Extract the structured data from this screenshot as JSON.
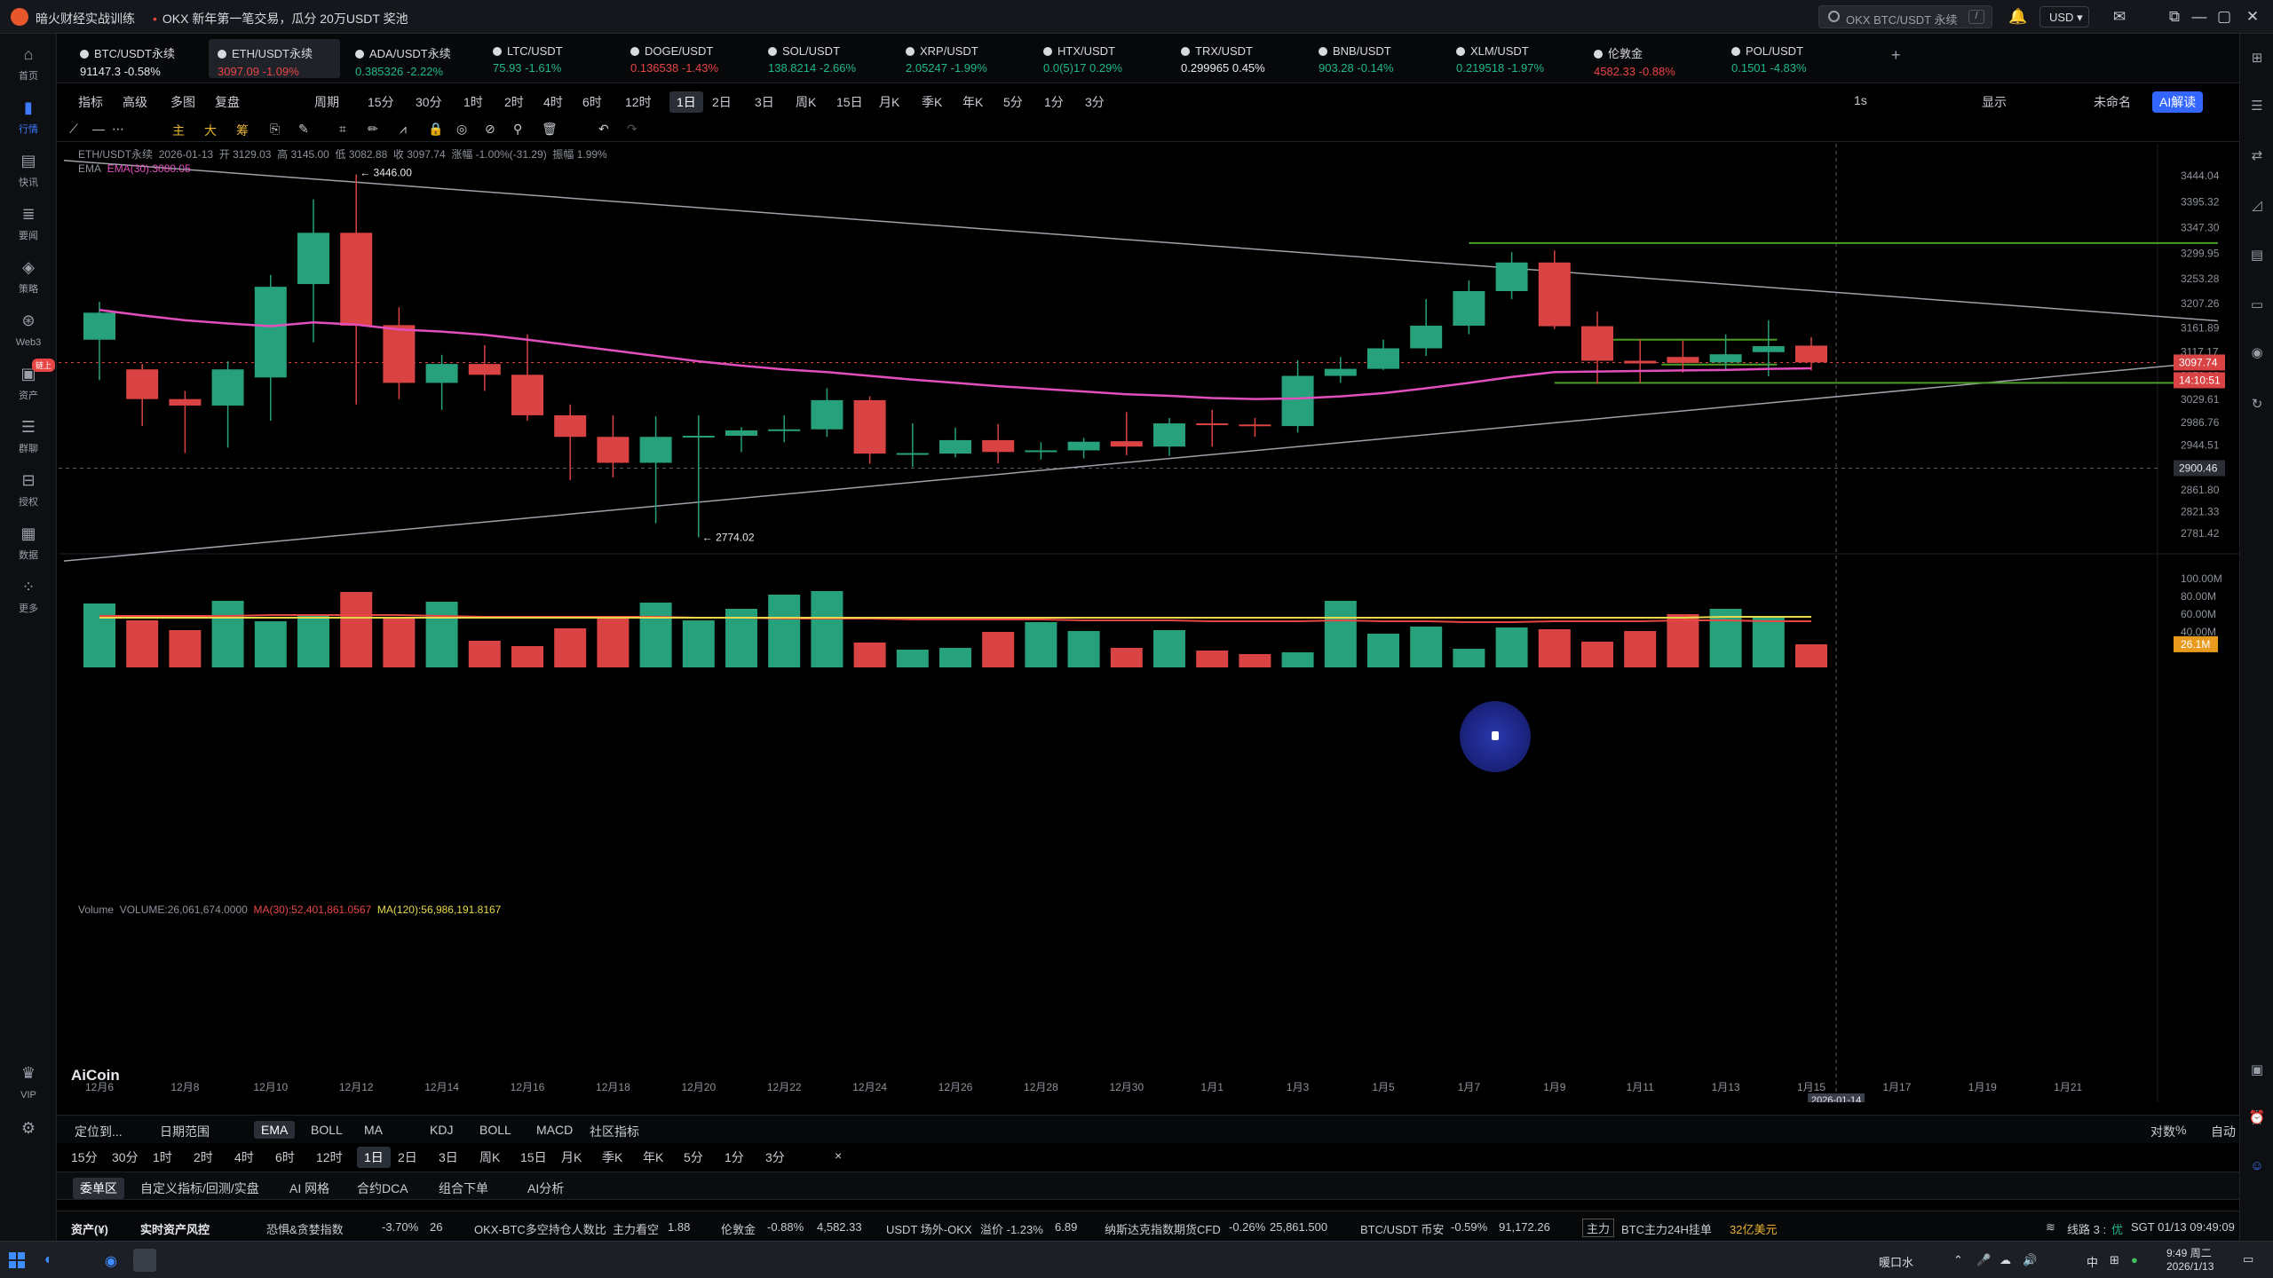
{
  "app": {
    "title": "暗火财经实战训练",
    "notice": "OKX 新年第一笔交易，瓜分 20万USDT 奖池",
    "search_placeholder": "OKX BTC/USDT 永续",
    "search_shortcut": "/",
    "currency": "USD"
  },
  "left_nav": [
    {
      "label": "首页",
      "icon": "home-icon"
    },
    {
      "label": "行情",
      "icon": "chart-bars-icon",
      "active": true
    },
    {
      "label": "快讯",
      "icon": "news-icon"
    },
    {
      "label": "要闻",
      "icon": "document-icon"
    },
    {
      "label": "策略",
      "icon": "robot-icon"
    },
    {
      "label": "Web3",
      "icon": "web3-icon"
    },
    {
      "label": "资产",
      "icon": "wallet-icon",
      "badge": "链上"
    },
    {
      "label": "群聊",
      "icon": "chat-icon"
    },
    {
      "label": "授权",
      "icon": "authorize-icon"
    },
    {
      "label": "数据",
      "icon": "data-icon"
    },
    {
      "label": "更多",
      "icon": "more-grid-icon"
    },
    {
      "label": "VIP",
      "icon": "vip-icon"
    },
    {
      "label": "",
      "icon": "settings-icon"
    }
  ],
  "tickers": [
    {
      "name": "BTC/USDT永续",
      "price": "91147.3",
      "change": "-0.58%",
      "price_color": "white",
      "change_color": "white"
    },
    {
      "name": "ETH/USDT永续",
      "price": "3097.09",
      "change": "-1.09%",
      "price_color": "down",
      "change_color": "down",
      "active": true
    },
    {
      "name": "ADA/USDT永续",
      "price": "0.385326",
      "change": "-2.22%",
      "price_color": "up",
      "change_color": "up"
    },
    {
      "name": "LTC/USDT",
      "price": "75.93",
      "change": "-1.61%",
      "price_color": "up",
      "change_color": "up"
    },
    {
      "name": "DOGE/USDT",
      "price": "0.136538",
      "change": "-1.43%",
      "price_color": "down",
      "change_color": "down"
    },
    {
      "name": "SOL/USDT",
      "price": "138.8214",
      "change": "-2.66%",
      "price_color": "up",
      "change_color": "up"
    },
    {
      "name": "XRP/USDT",
      "price": "2.05247",
      "change": "-1.99%",
      "price_color": "up",
      "change_color": "up"
    },
    {
      "name": "HTX/USDT",
      "price": "0.0(5)17",
      "change": "0.29%",
      "price_color": "up",
      "change_color": "up"
    },
    {
      "name": "TRX/USDT",
      "price": "0.299965",
      "change": "0.45%",
      "price_color": "white",
      "change_color": "white"
    },
    {
      "name": "BNB/USDT",
      "price": "903.28",
      "change": "-0.14%",
      "price_color": "up",
      "change_color": "up"
    },
    {
      "name": "XLM/USDT",
      "price": "0.219518",
      "change": "-1.97%",
      "price_color": "up",
      "change_color": "up"
    },
    {
      "name": "伦敦金",
      "price": "4582.33",
      "change": "-0.88%",
      "price_color": "down",
      "change_color": "down"
    },
    {
      "name": "POL/USDT",
      "price": "0.1501",
      "change": "-4.83%",
      "price_color": "up",
      "change_color": "up"
    }
  ],
  "toolbar": {
    "items": [
      "指标",
      "高级",
      "多图",
      "复盘",
      "周期",
      "15分",
      "30分",
      "1时",
      "2时",
      "4时",
      "6时",
      "12时",
      "1日",
      "2日",
      "3日",
      "周K",
      "15日",
      "月K",
      "季K",
      "年K",
      "5分",
      "1分",
      "3分"
    ],
    "selected": "1日",
    "right": [
      "1s",
      "显示",
      "未命名",
      "AI解读"
    ]
  },
  "draw_tools": {
    "gold": [
      "主",
      "大",
      "筹"
    ]
  },
  "legend": {
    "symbol": "ETH/USDT永续",
    "date": "2026-01-13",
    "open": "开 3129.03",
    "high": "高 3145.00",
    "low": "低 3082.88",
    "close": "收 3097.74",
    "change": "涨幅 -1.00%(-31.29)",
    "amplitude": "振幅 1.99%",
    "ema": "EMA",
    "ema_val": "EMA(30):3080.05",
    "volume": "Volume",
    "vol_val": "VOLUME:26,061,674.0000",
    "ma30": "MA(30):52,401,861.0567",
    "ma120": "MA(120):56,986,191.8167"
  },
  "chart_data": {
    "type": "candlestick",
    "symbol": "ETH/USDT永续",
    "timeframe": "1日",
    "ylim": [
      2750,
      3470
    ],
    "price_ticks": [
      3444.04,
      3395.32,
      3347.3,
      3299.95,
      3253.28,
      3207.26,
      3161.89,
      3117.17,
      3073.02,
      3029.61,
      2986.76,
      2944.51,
      2902.84,
      2861.8,
      2821.33,
      2781.42
    ],
    "x_labels": [
      "12月6",
      "12月8",
      "12月10",
      "12月12",
      "12月14",
      "12月16",
      "12月18",
      "12月20",
      "12月22",
      "12月24",
      "12月26",
      "12月28",
      "12月30",
      "1月1",
      "1月3",
      "1月5",
      "1月7",
      "1月9",
      "1月11",
      "1月13",
      "1月15",
      "1月17",
      "1月19",
      "1月21"
    ],
    "candles": [
      {
        "o": 3140,
        "h": 3210,
        "l": 3065,
        "c": 3190
      },
      {
        "o": 3085,
        "h": 3095,
        "l": 2980,
        "c": 3030
      },
      {
        "o": 3030,
        "h": 3045,
        "l": 2930,
        "c": 3018
      },
      {
        "o": 3018,
        "h": 3100,
        "l": 2940,
        "c": 3085
      },
      {
        "o": 3070,
        "h": 3260,
        "l": 2990,
        "c": 3238
      },
      {
        "o": 3243,
        "h": 3400,
        "l": 3135,
        "c": 3338
      },
      {
        "o": 3338,
        "h": 3446,
        "l": 3020,
        "c": 3166
      },
      {
        "o": 3167,
        "h": 3200,
        "l": 3030,
        "c": 3060
      },
      {
        "o": 3060,
        "h": 3112,
        "l": 3010,
        "c": 3095
      },
      {
        "o": 3095,
        "h": 3130,
        "l": 3045,
        "c": 3075
      },
      {
        "o": 3075,
        "h": 3150,
        "l": 2990,
        "c": 3000
      },
      {
        "o": 3000,
        "h": 3020,
        "l": 2880,
        "c": 2960
      },
      {
        "o": 2960,
        "h": 3000,
        "l": 2885,
        "c": 2912
      },
      {
        "o": 2912,
        "h": 2998,
        "l": 2800,
        "c": 2960
      },
      {
        "o": 2960,
        "h": 3000,
        "l": 2774,
        "c": 2962
      },
      {
        "o": 2962,
        "h": 2978,
        "l": 2932,
        "c": 2972
      },
      {
        "o": 2972,
        "h": 3000,
        "l": 2950,
        "c": 2974
      },
      {
        "o": 2974,
        "h": 3050,
        "l": 2960,
        "c": 3028
      },
      {
        "o": 3028,
        "h": 3035,
        "l": 2910,
        "c": 2929
      },
      {
        "o": 2929,
        "h": 2985,
        "l": 2904,
        "c": 2930
      },
      {
        "o": 2929,
        "h": 2977,
        "l": 2922,
        "c": 2954
      },
      {
        "o": 2954,
        "h": 2984,
        "l": 2911,
        "c": 2932
      },
      {
        "o": 2932,
        "h": 2950,
        "l": 2918,
        "c": 2935
      },
      {
        "o": 2935,
        "h": 2958,
        "l": 2920,
        "c": 2951
      },
      {
        "o": 2952,
        "h": 3006,
        "l": 2926,
        "c": 2942
      },
      {
        "o": 2942,
        "h": 2995,
        "l": 2925,
        "c": 2985
      },
      {
        "o": 2985,
        "h": 3010,
        "l": 2942,
        "c": 2983
      },
      {
        "o": 2983,
        "h": 2995,
        "l": 2960,
        "c": 2980
      },
      {
        "o": 2980,
        "h": 3102,
        "l": 2968,
        "c": 3073
      },
      {
        "o": 3073,
        "h": 3108,
        "l": 3060,
        "c": 3086
      },
      {
        "o": 3086,
        "h": 3140,
        "l": 3084,
        "c": 3124
      },
      {
        "o": 3124,
        "h": 3215,
        "l": 3110,
        "c": 3166
      },
      {
        "o": 3166,
        "h": 3250,
        "l": 3150,
        "c": 3230
      },
      {
        "o": 3230,
        "h": 3302,
        "l": 3215,
        "c": 3283
      },
      {
        "o": 3283,
        "h": 3305,
        "l": 3160,
        "c": 3165
      },
      {
        "o": 3165,
        "h": 3192,
        "l": 3058,
        "c": 3101
      },
      {
        "o": 3101,
        "h": 3140,
        "l": 3060,
        "c": 3096
      },
      {
        "o": 3108,
        "h": 3138,
        "l": 3079,
        "c": 3097
      },
      {
        "o": 3098,
        "h": 3150,
        "l": 3085,
        "c": 3113
      },
      {
        "o": 3117,
        "h": 3176,
        "l": 3072,
        "c": 3128
      },
      {
        "o": 3129,
        "h": 3145,
        "l": 3083,
        "c": 3098
      }
    ],
    "ema30": [
      3195,
      3185,
      3176,
      3170,
      3165,
      3172,
      3168,
      3159,
      3155,
      3149,
      3140,
      3130,
      3120,
      3110,
      3100,
      3092,
      3085,
      3080,
      3073,
      3066,
      3060,
      3054,
      3049,
      3044,
      3039,
      3036,
      3032,
      3030,
      3031,
      3035,
      3041,
      3050,
      3060,
      3071,
      3080,
      3081,
      3082,
      3083,
      3084,
      3086,
      3087
    ],
    "volumes": [
      72,
      53,
      42,
      75,
      52,
      58,
      85,
      55,
      74,
      30,
      24,
      44,
      58,
      73,
      53,
      66,
      82,
      86,
      28,
      20,
      22,
      40,
      51,
      41,
      22,
      42,
      19,
      15,
      17,
      75,
      38,
      46,
      21,
      45,
      43,
      29,
      41,
      60,
      66,
      57,
      26
    ],
    "vol_ma30": [
      58,
      58,
      58,
      58,
      59,
      59,
      59,
      59,
      58,
      57,
      57,
      57,
      57,
      57,
      56,
      56,
      55,
      55,
      55,
      54,
      54,
      54,
      54,
      53,
      53,
      53,
      52,
      52,
      52,
      53,
      52,
      52,
      51,
      51,
      52,
      52,
      52,
      53,
      53,
      52,
      52
    ],
    "vol_ma120": [
      56,
      56,
      56,
      56,
      56,
      56,
      56,
      56,
      56,
      56,
      56,
      56,
      56,
      56,
      56,
      56,
      56,
      56,
      56,
      56,
      56,
      56,
      56,
      56,
      56,
      56,
      56,
      56,
      56,
      56,
      56,
      56,
      56,
      56,
      56,
      56,
      56,
      56,
      57,
      57,
      57
    ],
    "vol_ticks": [
      "100.00M",
      "80.00M",
      "60.00M",
      "40.00M"
    ],
    "trendlines": [
      {
        "from": {
          "i": 0,
          "p": 3472
        },
        "to": {
          "i": 49.5,
          "p": 3175
        }
      },
      {
        "from": {
          "i": 0,
          "p": 2730
        },
        "to": {
          "i": 49.5,
          "p": 3100
        }
      }
    ],
    "hlines": [
      {
        "from_i": 32,
        "to_i": 49.5,
        "p": 3319
      },
      {
        "from_i": 35,
        "to_i": 39.2,
        "p": 3140
      },
      {
        "from_i": 36.5,
        "to_i": 39.2,
        "p": 3094
      },
      {
        "from_i": 34,
        "to_i": 49.5,
        "p": 3060
      }
    ],
    "annotations": {
      "high": "3446.00",
      "low": "2774.02",
      "last_price": "3097.74",
      "countdown": "14:10:51",
      "crosshair_price": "2900.46",
      "crosshair_date": "2026-01-14",
      "last_vol": "26.1M"
    },
    "colors": {
      "up": "#26a17b",
      "down": "#d94343",
      "ema": "#e24fbd",
      "ma30": "#e84545",
      "ma120": "#e8d84b",
      "trend": "#9ea2aa",
      "hline": "#4e9e27"
    }
  },
  "bottom_tabs1": {
    "items": [
      "定位到...",
      "日期范围",
      "EMA",
      "BOLL",
      "MA",
      "KDJ",
      "BOLL",
      "MACD",
      "社区指标"
    ],
    "right": [
      "对数",
      "%",
      "自动"
    ],
    "selected": "EMA"
  },
  "bottom_tabs2": {
    "items": [
      "15分",
      "30分",
      "1时",
      "2时",
      "4时",
      "6时",
      "12时",
      "1日",
      "2日",
      "3日",
      "周K",
      "15日",
      "月K",
      "季K",
      "年K",
      "5分",
      "1分",
      "3分"
    ],
    "selected": "1日"
  },
  "panel_tabs": {
    "items": [
      "委单区",
      "自定义指标/回测/实盘",
      "AI 网格",
      "合约DCA",
      "组合下单",
      "AI分析"
    ],
    "selected": "委单区"
  },
  "statusbar": {
    "asset": "资产(¥)",
    "risk": "实时资产风控",
    "fear_label": "恐惧&贪婪指数",
    "fear_change": "-3.70%",
    "fear_value": "26",
    "okx_label": "OKX-BTC多空持仓人数比",
    "okx_tag": "主力看空",
    "okx_value": "1.88",
    "gold_label": "伦敦金",
    "gold_change": "-0.88%",
    "gold_value": "4,582.33",
    "usdt_label": "USDT 场外-OKX",
    "usdt_change": "溢价 -1.23%",
    "usdt_value": "6.89",
    "nasdaq_label": "纳斯达克指数期货CFD",
    "nasdaq_change": "-0.26%",
    "nasdaq_value": "25,861.500",
    "btc_label": "BTC/USDT 币安",
    "btc_change": "-0.59%",
    "btc_value": "91,172.26",
    "main_tag": "主力",
    "btc24_label": "BTC主力24H挂单",
    "btc24_value": "32亿美元",
    "line": "线路 3 :",
    "line_q": "优",
    "clock": "SGT 01/13 09:49:09"
  },
  "taskbar": {
    "weather": "暖口水",
    "lang": "中",
    "time": "9:49 周二",
    "date": "2026/1/13"
  }
}
